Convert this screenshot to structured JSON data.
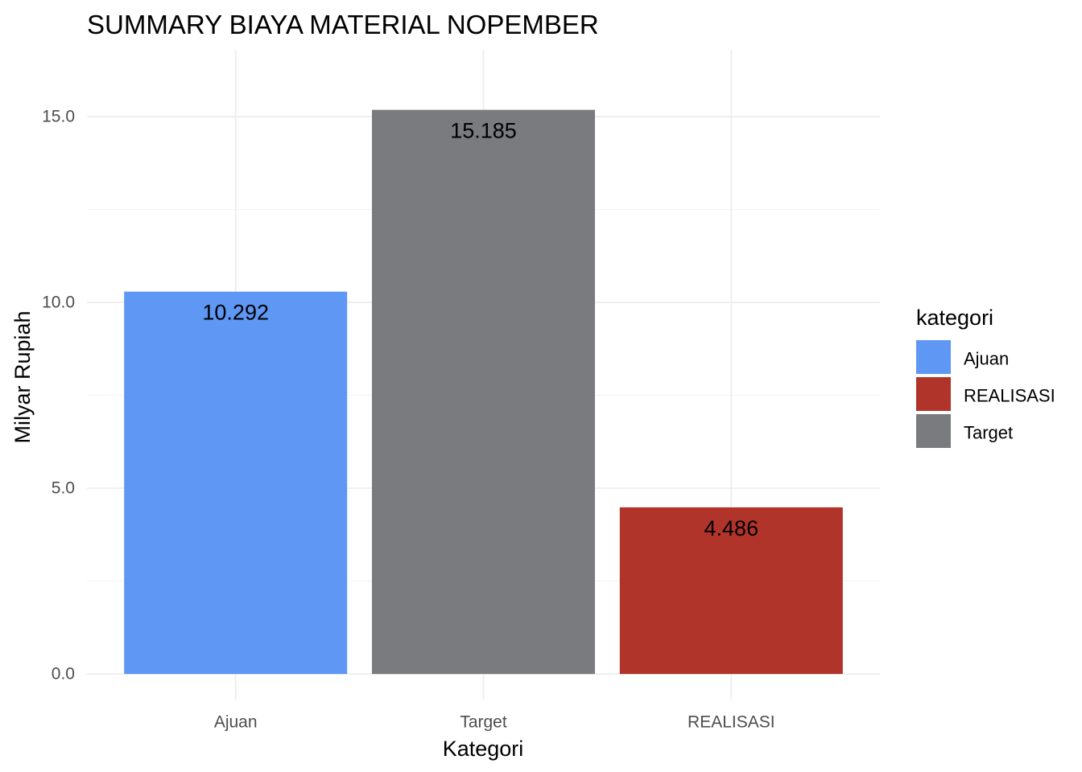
{
  "chart_data": {
    "type": "bar",
    "title": "SUMMARY BIAYA MATERIAL NOPEMBER",
    "xlabel": "Kategori",
    "ylabel": "Milyar Rupiah",
    "categories": [
      "Ajuan",
      "Target",
      "REALISASI"
    ],
    "values": [
      10.292,
      15.185,
      4.486
    ],
    "colors": [
      "#5F97F5",
      "#7A7B7F",
      "#B0342A"
    ],
    "ylim": [
      -0.69,
      16.8
    ],
    "y_ticks": [
      0,
      5,
      10,
      15
    ],
    "y_tick_labels": [
      "0.0",
      "5.0",
      "10.0",
      "15.0"
    ],
    "grid": true,
    "legend": {
      "title": "kategori",
      "position": "right",
      "items": [
        {
          "label": "Ajuan",
          "color": "#5F97F5"
        },
        {
          "label": "REALISASI",
          "color": "#B0342A"
        },
        {
          "label": "Target",
          "color": "#7A7B7F"
        }
      ]
    }
  }
}
